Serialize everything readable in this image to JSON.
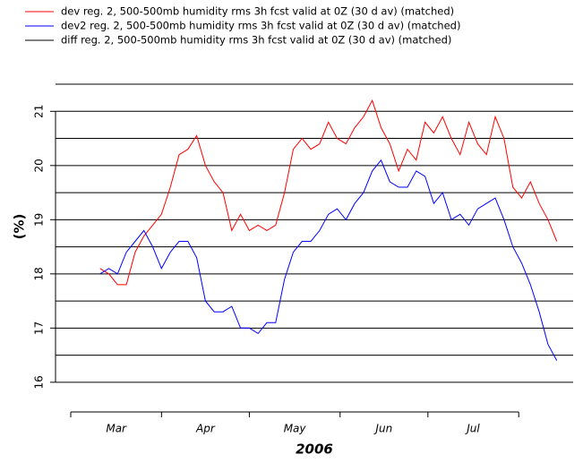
{
  "chart_data": {
    "type": "line",
    "y_label": "(%)",
    "x_label": "2006",
    "x": [
      10,
      13,
      16,
      19,
      22,
      25,
      28,
      31,
      34,
      37,
      40,
      43,
      46,
      49,
      52,
      55,
      58,
      61,
      64,
      67,
      70,
      73,
      76,
      79,
      82,
      85,
      88,
      91,
      94,
      97,
      100,
      103,
      106,
      109,
      112,
      115,
      118,
      121,
      124,
      127,
      130,
      133,
      136,
      139,
      142,
      145,
      148,
      151,
      154,
      157,
      160,
      163,
      166
    ],
    "series": [
      {
        "name": "dev reg. 2, 500-500mb humidity rms 3h fcst valid at 0Z (30 d av) (matched)",
        "color": "#ff0000",
        "values": [
          18.1,
          18.0,
          17.8,
          17.8,
          18.4,
          18.7,
          18.9,
          19.1,
          19.6,
          20.2,
          20.3,
          20.55,
          20.0,
          19.7,
          19.5,
          18.8,
          19.1,
          18.8,
          18.9,
          18.8,
          18.9,
          19.5,
          20.3,
          20.5,
          20.3,
          20.4,
          20.8,
          20.5,
          20.4,
          20.7,
          20.9,
          21.2,
          20.7,
          20.4,
          19.9,
          20.3,
          20.1,
          20.8,
          20.6,
          20.9,
          20.5,
          20.2,
          20.8,
          20.4,
          20.2,
          20.9,
          20.5,
          19.6,
          19.4,
          19.7,
          19.3,
          19.0,
          18.6
        ]
      },
      {
        "name": "dev2 reg. 2, 500-500mb humidity rms 3h fcst valid at 0Z (30 d av) (matched)",
        "color": "#0000ff",
        "values": [
          18.0,
          18.1,
          18.0,
          18.4,
          18.6,
          18.8,
          18.5,
          18.1,
          18.4,
          18.6,
          18.6,
          18.3,
          17.5,
          17.3,
          17.3,
          17.4,
          17.0,
          17.0,
          16.9,
          17.1,
          17.1,
          17.9,
          18.4,
          18.6,
          18.6,
          18.8,
          19.1,
          19.2,
          19.0,
          19.3,
          19.5,
          19.9,
          20.1,
          19.7,
          19.6,
          19.6,
          19.9,
          19.8,
          19.3,
          19.5,
          19.0,
          19.1,
          18.9,
          19.2,
          19.3,
          19.4,
          19.0,
          18.5,
          18.2,
          17.8,
          17.3,
          16.7,
          16.4
        ]
      },
      {
        "name": "diff reg. 2, 500-500mb humidity rms 3h fcst valid at 0Z (30 d av) (matched)",
        "color": "#000000",
        "values": [
          null,
          null,
          null,
          null,
          null,
          null,
          null,
          null,
          null,
          null,
          null,
          null,
          null,
          null,
          null,
          null,
          null,
          null,
          null,
          null,
          null,
          null,
          null,
          null,
          null,
          null,
          null,
          null,
          null,
          null,
          null,
          null,
          null,
          null,
          null,
          null,
          null,
          null,
          null,
          null,
          null,
          null,
          null,
          null,
          null,
          null,
          null,
          null,
          null,
          null,
          null,
          null,
          null
        ]
      }
    ],
    "xlim": [
      -5.2,
      171.6
    ],
    "xticks": [
      0,
      31,
      61,
      92,
      122,
      153
    ],
    "month_labels": [
      {
        "value": 15.5,
        "label": "Mar"
      },
      {
        "value": 46,
        "label": "Apr"
      },
      {
        "value": 76.5,
        "label": "May"
      },
      {
        "value": 107,
        "label": "Jun"
      },
      {
        "value": 137.5,
        "label": "Jul"
      }
    ],
    "ylim": [
      15.7,
      21.6
    ],
    "yticks": [
      16,
      17,
      18,
      19,
      20,
      21
    ],
    "ygrid": [
      16,
      16.5,
      17,
      17.5,
      18,
      18.5,
      19,
      19.5,
      20,
      20.5,
      21,
      21.5
    ],
    "grid": true
  }
}
